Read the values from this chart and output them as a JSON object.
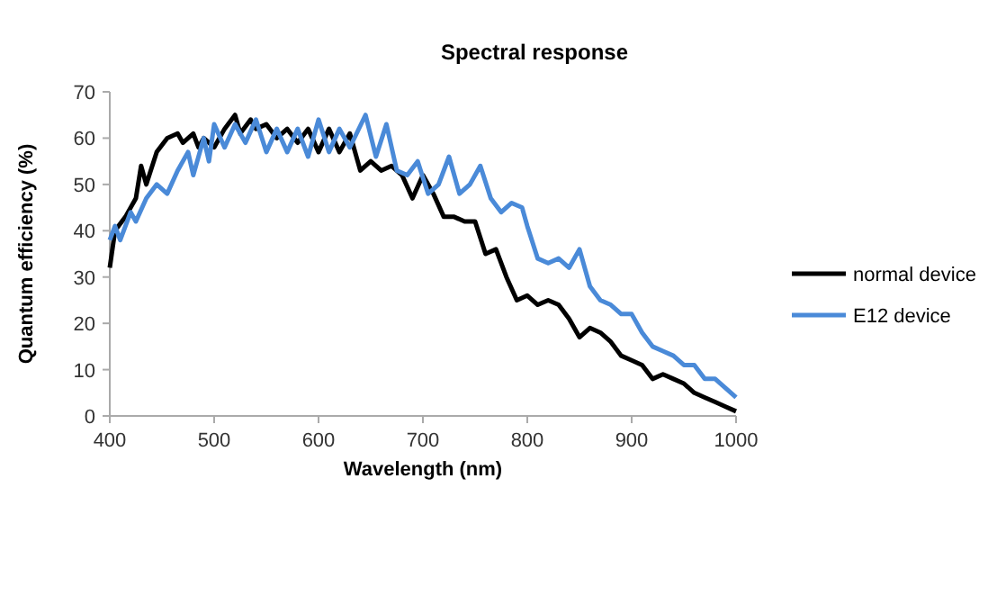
{
  "chart_data": {
    "type": "line",
    "title": "Spectral response",
    "xlabel": "Wavelength (nm)",
    "ylabel": "Quantum efficiency (%)",
    "xlim": [
      400,
      1000
    ],
    "xticks": [
      400,
      500,
      600,
      700,
      800,
      900,
      1000
    ],
    "ylim": [
      0,
      70
    ],
    "yticks": [
      0,
      10,
      20,
      30,
      40,
      50,
      60,
      70
    ],
    "grid": false,
    "legend": "right",
    "marker": "none",
    "line_style": "solid",
    "series": [
      {
        "name": "normal device",
        "color": "#000000",
        "x": [
          400,
          405,
          415,
          425,
          430,
          435,
          445,
          455,
          465,
          470,
          480,
          485,
          490,
          500,
          510,
          520,
          525,
          535,
          540,
          550,
          560,
          570,
          580,
          590,
          600,
          610,
          620,
          630,
          640,
          650,
          660,
          670,
          680,
          690,
          700,
          710,
          720,
          730,
          740,
          750,
          760,
          770,
          780,
          790,
          800,
          810,
          820,
          830,
          840,
          850,
          860,
          870,
          880,
          890,
          900,
          910,
          920,
          930,
          940,
          950,
          960,
          970,
          980,
          990,
          1000
        ],
        "values": [
          32,
          40,
          43,
          47,
          54,
          50,
          57,
          60,
          61,
          59,
          61,
          58,
          60,
          58,
          62,
          65,
          61,
          64,
          62,
          63,
          60,
          62,
          59,
          62,
          57,
          62,
          57,
          61,
          53,
          55,
          53,
          54,
          52,
          47,
          52,
          48,
          43,
          43,
          42,
          42,
          35,
          36,
          30,
          25,
          26,
          24,
          25,
          24,
          21,
          17,
          19,
          18,
          16,
          13,
          12,
          11,
          8,
          9,
          8,
          7,
          5,
          4,
          3,
          2,
          1
        ]
      },
      {
        "name": "E12 device",
        "color": "#4a8ad8",
        "x": [
          400,
          405,
          410,
          420,
          425,
          435,
          445,
          455,
          465,
          475,
          480,
          490,
          495,
          500,
          510,
          520,
          530,
          540,
          550,
          560,
          570,
          580,
          590,
          600,
          610,
          620,
          630,
          645,
          655,
          665,
          675,
          685,
          695,
          705,
          715,
          725,
          735,
          745,
          755,
          765,
          775,
          785,
          795,
          800,
          810,
          820,
          830,
          840,
          850,
          860,
          870,
          880,
          890,
          900,
          910,
          920,
          930,
          940,
          950,
          960,
          970,
          980,
          990,
          1000
        ],
        "values": [
          38,
          41,
          38,
          44,
          42,
          47,
          50,
          48,
          53,
          57,
          52,
          60,
          55,
          63,
          58,
          63,
          59,
          64,
          57,
          62,
          57,
          62,
          56,
          64,
          57,
          62,
          58,
          65,
          56,
          63,
          53,
          52,
          55,
          48,
          50,
          56,
          48,
          50,
          54,
          47,
          44,
          46,
          45,
          41,
          34,
          33,
          34,
          32,
          36,
          28,
          25,
          24,
          22,
          22,
          18,
          15,
          14,
          13,
          11,
          11,
          8,
          8,
          6,
          4
        ]
      }
    ]
  }
}
